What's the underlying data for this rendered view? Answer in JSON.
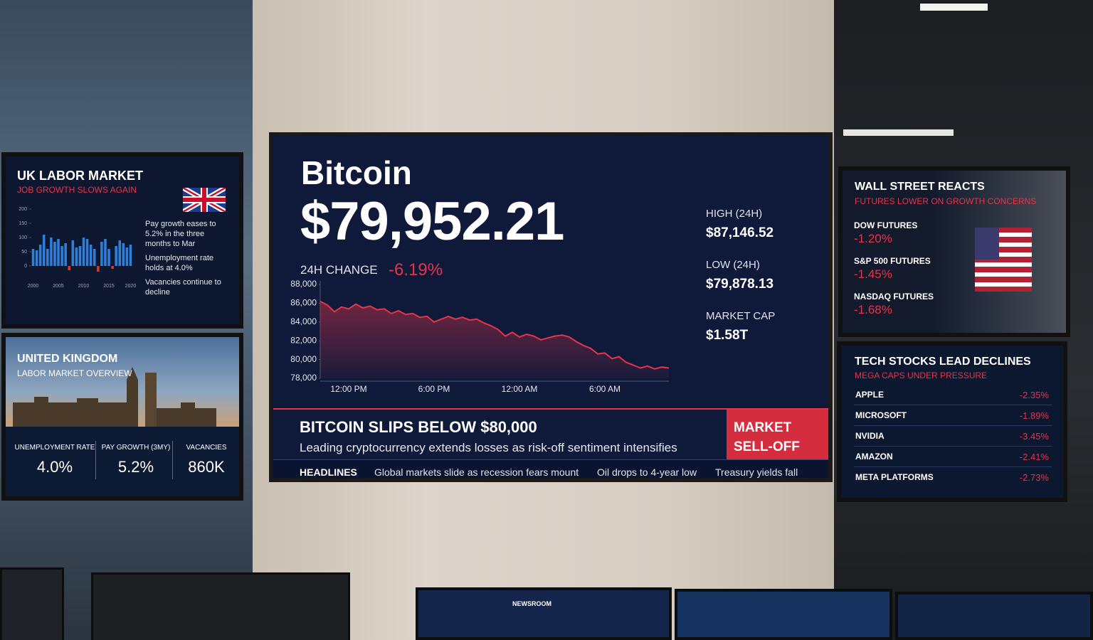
{
  "chart_data": [
    {
      "type": "line",
      "title": "Bitcoin",
      "categories": [
        null,
        null,
        null,
        null,
        "12:00 PM",
        null,
        null,
        null,
        null,
        null,
        null,
        null,
        null,
        null,
        null,
        null,
        "6:00 PM",
        null,
        null,
        null,
        null,
        null,
        null,
        null,
        null,
        null,
        null,
        null,
        "12:00 AM",
        null,
        null,
        null,
        null,
        null,
        null,
        null,
        null,
        null,
        null,
        null,
        "6:00 AM",
        null,
        null,
        null,
        null,
        null,
        null,
        null,
        null,
        null
      ],
      "values": [
        86200,
        85800,
        85100,
        85600,
        85400,
        85900,
        85500,
        85700,
        85300,
        85400,
        84900,
        85200,
        84800,
        84900,
        84500,
        84600,
        84000,
        84300,
        84600,
        84300,
        84500,
        84200,
        84300,
        83900,
        83600,
        83200,
        82500,
        82900,
        82400,
        82700,
        82500,
        82100,
        82300,
        82500,
        82600,
        82400,
        81900,
        81500,
        81200,
        80600,
        80700,
        80100,
        80300,
        79700,
        79400,
        79100,
        79300,
        79000,
        79200,
        79100
      ],
      "color": "#e8344a",
      "ylim": [
        78000,
        88000
      ],
      "yticks": [
        {
          "value": 78000,
          "label": "78,000"
        },
        {
          "value": 80000,
          "label": "80,000"
        },
        {
          "value": 82000,
          "label": "82,000"
        },
        {
          "value": 84000,
          "label": "84,000"
        },
        {
          "value": 86000,
          "label": "86,000"
        },
        {
          "value": 88000,
          "label": "88,000"
        }
      ]
    },
    {
      "type": "bar",
      "categories": [
        "2000",
        null,
        null,
        null,
        null,
        null,
        null,
        "2005",
        null,
        null,
        null,
        null,
        null,
        null,
        "2010",
        null,
        null,
        null,
        null,
        null,
        null,
        "2015",
        null,
        null,
        null,
        null,
        null,
        "2020"
      ],
      "values": [
        60,
        55,
        75,
        110,
        60,
        100,
        85,
        95,
        70,
        80,
        -15,
        90,
        65,
        70,
        100,
        95,
        75,
        60,
        -20,
        85,
        95,
        60,
        -10,
        70,
        90,
        80,
        65,
        75
      ],
      "color": "#2f7fd8",
      "negative_color": "#d23a3a",
      "ylim": [
        -50,
        200
      ],
      "yticks": [
        0,
        50,
        100,
        150,
        200
      ]
    }
  ],
  "bitcoin_screen": {
    "price": "$79,952.21",
    "change_label": "24H CHANGE",
    "change": "-6.19%",
    "stats": [
      {
        "label": "HIGH (24H)",
        "value": "$87,146.52"
      },
      {
        "label": "LOW (24H)",
        "value": "$79,878.13"
      },
      {
        "label": "MARKET CAP",
        "value": "$1.58T"
      }
    ],
    "banner": {
      "headline": "BITCOIN SLIPS BELOW $80,000",
      "subline": "Leading cryptocurrency extends losses as risk-off sentiment intensifies",
      "tag": [
        "MARKET",
        "SELL-OFF"
      ]
    },
    "ticker": {
      "label": "HEADLINES",
      "items": [
        "Global markets slide as recession fears mount",
        "Oil drops to 4-year low",
        "Treasury yields fall"
      ]
    }
  },
  "uk_screen": {
    "title": "UK LABOR MARKET",
    "subtitle": "JOB GROWTH SLOWS AGAIN",
    "bullets": [
      "Pay growth eases to 5.2% in the three months to Mar",
      "Unemployment rate holds at 4.0%",
      "Vacancies continue to decline"
    ]
  },
  "uk_overview": {
    "title": "UNITED KINGDOM",
    "subtitle": "LABOR MARKET OVERVIEW",
    "stats": [
      {
        "label": "UNEMPLOYMENT RATE",
        "value": "4.0%"
      },
      {
        "label": "PAY GROWTH (3MY)",
        "value": "5.2%"
      },
      {
        "label": "VACANCIES",
        "value": "860K"
      }
    ]
  },
  "wall_street": {
    "title": "WALL STREET REACTS",
    "subtitle": "FUTURES LOWER ON GROWTH CONCERNS",
    "futures": [
      {
        "name": "DOW FUTURES",
        "value": "-1.20%"
      },
      {
        "name": "S&P 500 FUTURES",
        "value": "-1.45%"
      },
      {
        "name": "NASDAQ FUTURES",
        "value": "-1.68%"
      }
    ]
  },
  "tech_stocks": {
    "title": "TECH STOCKS LEAD DECLINES",
    "subtitle": "MEGA CAPS UNDER PRESSURE",
    "rows": [
      {
        "name": "APPLE",
        "value": "-2.35%"
      },
      {
        "name": "MICROSOFT",
        "value": "-1.89%"
      },
      {
        "name": "NVIDIA",
        "value": "-3.45%"
      },
      {
        "name": "AMAZON",
        "value": "-2.41%"
      },
      {
        "name": "META PLATFORMS",
        "value": "-2.73%"
      }
    ]
  },
  "monitors": {
    "label": "NEWSROOM"
  }
}
